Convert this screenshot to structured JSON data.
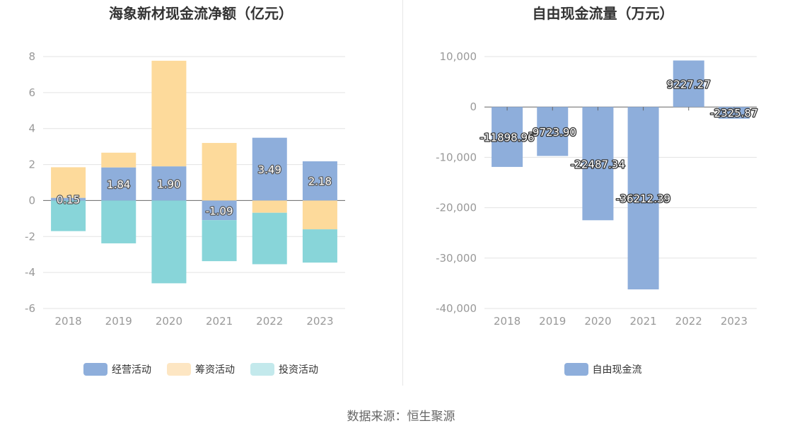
{
  "chart_data": [
    {
      "type": "bar",
      "stacked": true,
      "title": "海象新材现金流净额（亿元）",
      "categories": [
        "2018",
        "2019",
        "2020",
        "2021",
        "2022",
        "2023"
      ],
      "ylim": [
        -6,
        8
      ],
      "yticks": [
        -6,
        -4,
        -2,
        0,
        2,
        4,
        6,
        8
      ],
      "series": [
        {
          "name": "经营活动",
          "color": "#8eaedb",
          "values": [
            0.15,
            1.84,
            1.9,
            -1.09,
            3.49,
            2.18
          ],
          "labels": [
            "0.15",
            "1.84",
            "1.90",
            "-1.09",
            "3.49",
            "2.18"
          ]
        },
        {
          "name": "筹资活动",
          "color": "#fdda9b",
          "values": [
            1.7,
            0.82,
            5.87,
            3.2,
            -0.68,
            -1.6
          ]
        },
        {
          "name": "投资活动",
          "color": "#88d5d9",
          "values": [
            -1.7,
            -2.38,
            -4.6,
            -2.28,
            -2.86,
            -1.85
          ]
        }
      ],
      "legend_colors": [
        "#8eaedb",
        "#fde6c3",
        "#c3e9ec"
      ]
    },
    {
      "type": "bar",
      "title": "自由现金流量（万元）",
      "categories": [
        "2018",
        "2019",
        "2020",
        "2021",
        "2022",
        "2023"
      ],
      "ylim": [
        -40000,
        10000
      ],
      "yticks": [
        -40000,
        -30000,
        -20000,
        -10000,
        0,
        10000
      ],
      "ytick_labels": [
        "-40,000",
        "-30,000",
        "-20,000",
        "-10,000",
        "0",
        "10,000"
      ],
      "series": [
        {
          "name": "自由现金流",
          "color": "#8eaedb",
          "values": [
            -11898.96,
            -9723.9,
            -22487.34,
            -36212.39,
            9227.27,
            -2325.87
          ],
          "labels": [
            "-11898.96",
            "-9723.90",
            "-22487.34",
            "-36212.39",
            "9227.27",
            "-2325.87"
          ]
        }
      ]
    }
  ],
  "source": "数据来源：恒生聚源"
}
